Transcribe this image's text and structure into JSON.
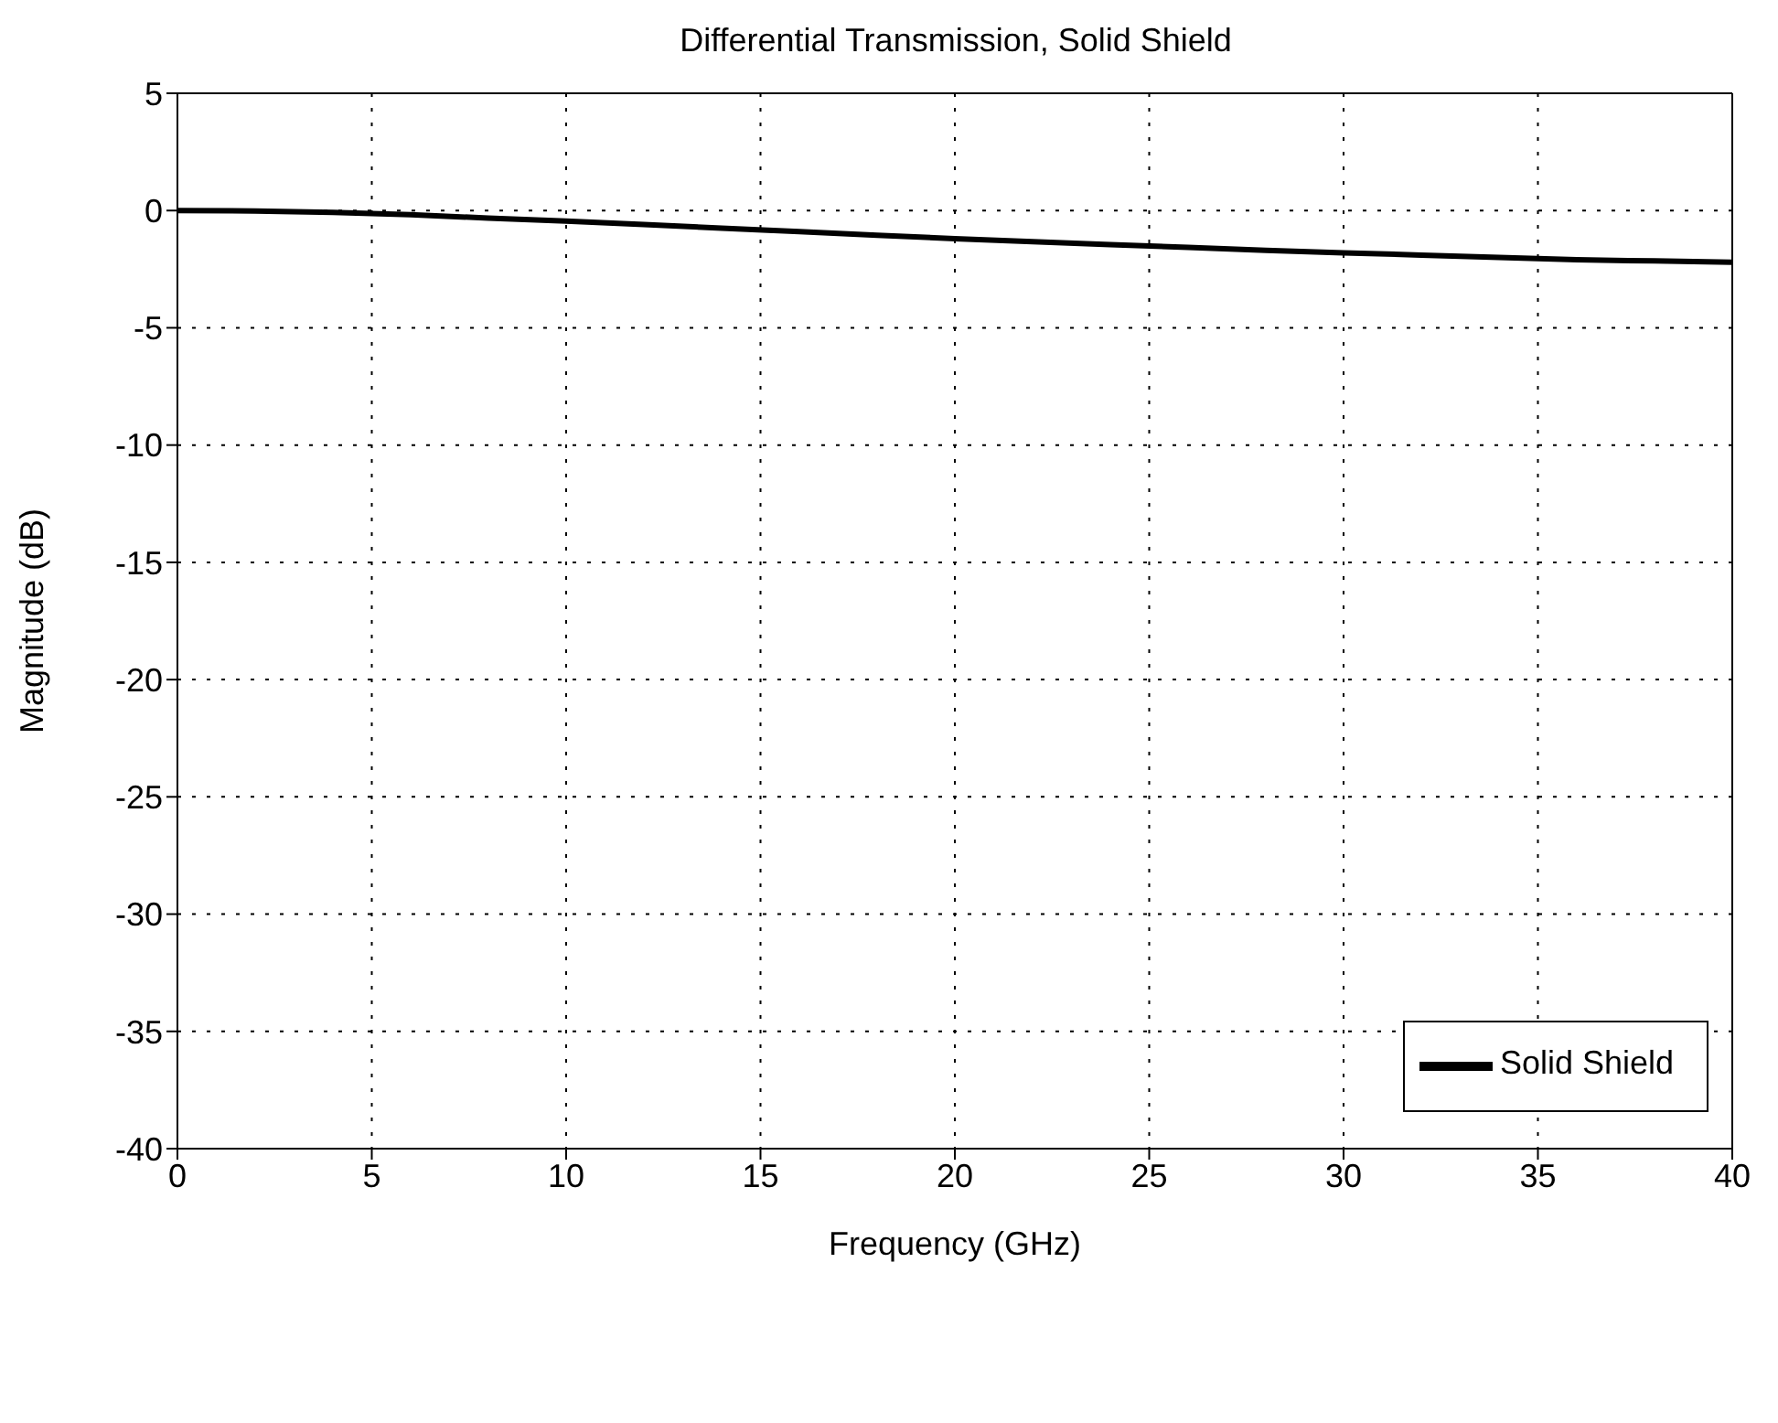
{
  "chart_data": {
    "type": "line",
    "title": "Differential Transmission, Solid Shield",
    "xlabel": "Frequency (GHz)",
    "ylabel": "Magnitude (dB)",
    "x": [
      0,
      2,
      4,
      6,
      8,
      10,
      12,
      14,
      16,
      18,
      20,
      22,
      24,
      26,
      28,
      30,
      32,
      34,
      36,
      38,
      40
    ],
    "series": [
      {
        "name": "Solid Shield",
        "color": "#000000",
        "values": [
          0,
          -0.02,
          -0.08,
          -0.18,
          -0.32,
          -0.45,
          -0.6,
          -0.75,
          -0.9,
          -1.05,
          -1.2,
          -1.33,
          -1.45,
          -1.57,
          -1.7,
          -1.8,
          -1.9,
          -2.0,
          -2.1,
          -2.15,
          -2.2
        ]
      }
    ],
    "xlim": [
      0,
      40
    ],
    "xticks": [
      0,
      5,
      10,
      15,
      20,
      25,
      30,
      35,
      40
    ],
    "ylim": [
      -40,
      5
    ],
    "yticks": [
      -40,
      -35,
      -30,
      -25,
      -20,
      -15,
      -10,
      -5,
      0,
      5
    ],
    "grid": true,
    "legend": "bottom right",
    "marker": "none",
    "line_style": "solid"
  }
}
